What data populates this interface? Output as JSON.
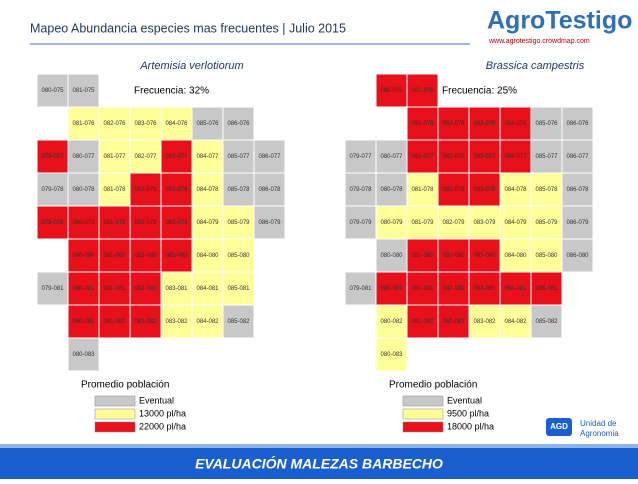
{
  "header": {
    "title": "Mapeo Abundancia especies mas frecuentes | Julio 2015",
    "logo": "AgroTestigo",
    "url": "www.agrotestigo.crowdmap.com"
  },
  "maps": [
    {
      "species": "Artemisia verlotiorum",
      "frequency": "Frecuencia: 32%",
      "rows": [
        [
          "080-075",
          "081-075"
        ],
        [
          null,
          "081-076",
          "082-076",
          "083-076",
          "084-076",
          "085-076",
          "086-076"
        ],
        [
          "079-077",
          "080-077",
          "081-077",
          "082-077",
          "083-077",
          "084-077",
          "085-077",
          "086-077"
        ],
        [
          "079-078",
          "080-078",
          "081-078",
          "082-078",
          "083-078",
          "084-078",
          "085-078",
          "086-078"
        ],
        [
          "079-079",
          "080-079",
          "081-079",
          "082-079",
          "083-079",
          "084-079",
          "085-079",
          "086-079"
        ],
        [
          null,
          "080-080",
          "081-080",
          "082-080",
          "083-080",
          "084-080",
          "085-080"
        ],
        [
          "079-081",
          "080-081",
          "081-081",
          "082-081",
          "083-081",
          "084-081",
          "085-081"
        ],
        [
          null,
          "080-082",
          "081-082",
          "082-082",
          "083-082",
          "084-082",
          "085-082"
        ],
        [
          null,
          "080-083"
        ]
      ],
      "fills": [
        [
          "#c8c8c8",
          "#c8c8c8"
        ],
        [
          null,
          "#ffff99",
          "#ffff99",
          "#ffff99",
          "#ffff99",
          "#c8c8c8",
          "#c8c8c8"
        ],
        [
          "#e8101a",
          "#c8c8c8",
          "#ffff99",
          "#ffff99",
          "#e8101a",
          "#ffff99",
          "#c8c8c8",
          "#c8c8c8"
        ],
        [
          "#c8c8c8",
          "#c8c8c8",
          "#ffff99",
          "#e8101a",
          "#e8101a",
          "#ffff99",
          "#c8c8c8",
          "#c8c8c8"
        ],
        [
          "#e8101a",
          "#e8101a",
          "#e8101a",
          "#e8101a",
          "#e8101a",
          "#ffff99",
          "#ffff99",
          "#c8c8c8"
        ],
        [
          null,
          "#e8101a",
          "#e8101a",
          "#e8101a",
          "#e8101a",
          "#ffff99",
          "#ffff99"
        ],
        [
          "#c8c8c8",
          "#e8101a",
          "#e8101a",
          "#e8101a",
          "#ffff99",
          "#ffff99",
          "#ffff99"
        ],
        [
          null,
          "#e8101a",
          "#e8101a",
          "#e8101a",
          "#ffff99",
          "#ffff99",
          "#c8c8c8"
        ],
        [
          null,
          "#c8c8c8"
        ]
      ],
      "legend": {
        "title": "Promedio población",
        "items": [
          {
            "label": "Eventual",
            "color": "#c8c8c8"
          },
          {
            "label": "13000 pl/ha",
            "color": "#ffff99"
          },
          {
            "label": "22000 pl/ha",
            "color": "#e8101a"
          }
        ]
      }
    },
    {
      "species": "Brassica campestris",
      "frequency": "Frecuencia: 25%",
      "rows": [
        [
          null,
          "080-075",
          "081-075"
        ],
        [
          null,
          null,
          "081-076",
          "082-076",
          "083-076",
          "084-076",
          "085-076",
          "086-076"
        ],
        [
          "079-077",
          "080-077",
          "081-077",
          "082-077",
          "083-077",
          "084-077",
          "085-077",
          "086-077"
        ],
        [
          "079-078",
          "080-078",
          "081-078",
          "082-078",
          "083-078",
          "084-078",
          "085-078",
          "086-078"
        ],
        [
          "079-079",
          "080-079",
          "081-079",
          "082-079",
          "083-079",
          "084-079",
          "085-079",
          "086-079"
        ],
        [
          null,
          "080-080",
          "081-080",
          "082-080",
          "083-080",
          "084-080",
          "085-080",
          "086-080"
        ],
        [
          "079-081",
          "080-081",
          "081-081",
          "082-081",
          "083-081",
          "084-081",
          "085-081"
        ],
        [
          null,
          "080-082",
          "081-082",
          "082-082",
          "083-082",
          "084-082",
          "085-082"
        ],
        [
          null,
          "080-083"
        ]
      ],
      "fills": [
        [
          null,
          "#e8101a",
          "#e8101a"
        ],
        [
          null,
          null,
          "#e8101a",
          "#e8101a",
          "#e8101a",
          "#e8101a",
          "#c8c8c8",
          "#c8c8c8"
        ],
        [
          "#c8c8c8",
          "#c8c8c8",
          "#e8101a",
          "#e8101a",
          "#e8101a",
          "#e8101a",
          "#c8c8c8",
          "#c8c8c8"
        ],
        [
          "#c8c8c8",
          "#c8c8c8",
          "#ffff99",
          "#e8101a",
          "#e8101a",
          "#ffff99",
          "#ffff99",
          "#c8c8c8"
        ],
        [
          "#c8c8c8",
          "#ffff99",
          "#ffff99",
          "#ffff99",
          "#ffff99",
          "#ffff99",
          "#ffff99",
          "#c8c8c8"
        ],
        [
          null,
          "#c8c8c8",
          "#e8101a",
          "#e8101a",
          "#e8101a",
          "#ffff99",
          "#ffff99",
          "#c8c8c8"
        ],
        [
          "#c8c8c8",
          "#e8101a",
          "#e8101a",
          "#e8101a",
          "#e8101a",
          "#e8101a",
          "#e8101a"
        ],
        [
          null,
          "#ffff99",
          "#e8101a",
          "#e8101a",
          "#ffff99",
          "#ffff99",
          "#c8c8c8"
        ],
        [
          null,
          "#ffff99"
        ]
      ],
      "legend": {
        "title": "Promedio población",
        "items": [
          {
            "label": "Eventual",
            "color": "#c8c8c8"
          },
          {
            "label": "9500 pl/ha",
            "color": "#ffff99"
          },
          {
            "label": "18000 pl/ha",
            "color": "#e8101a"
          }
        ]
      }
    }
  ],
  "footer": {
    "banner": "EVALUACIÓN MALEZAS BARBECHO",
    "agd_logo": "AGD",
    "agd_unit": "Unidad de",
    "agd_name": "Agronomia"
  }
}
